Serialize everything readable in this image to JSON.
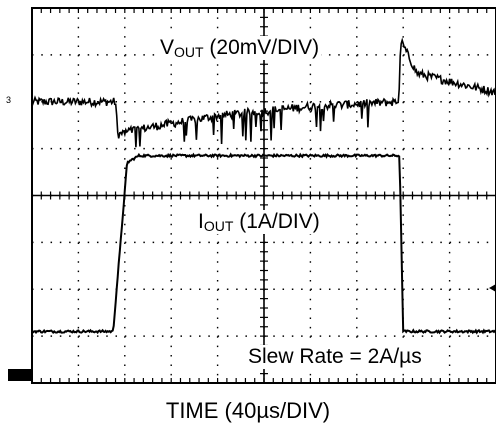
{
  "chart_data": {
    "type": "line",
    "grid": "dotted 10x8",
    "x_axis": {
      "label": "TIME (40µs/DIV)",
      "divisions": 10,
      "units_per_div_us": 40
    },
    "y_axis": {
      "divisions": 8
    },
    "series": [
      {
        "name": "VOUT (20mV/DIV)",
        "label_main": "V",
        "label_sub": "OUT",
        "label_rest": " (20mV/DIV)",
        "trace": "load-transient voltage: flat, dip at load step, slow recovery, overshoot at load release",
        "points_div": [
          [
            0,
            6.0
          ],
          [
            1.8,
            6.0
          ],
          [
            1.85,
            5.3
          ],
          [
            2.2,
            5.4
          ],
          [
            4,
            5.7
          ],
          [
            6,
            5.9
          ],
          [
            7.9,
            6.0
          ],
          [
            7.95,
            7.3
          ],
          [
            8.3,
            6.6
          ],
          [
            10,
            6.2
          ]
        ]
      },
      {
        "name": "IOUT (1A/DIV)",
        "label_main": "I",
        "label_sub": "OUT",
        "label_rest": " (1A/DIV)",
        "trace": "load current square pulse",
        "points_div": [
          [
            0,
            1.1
          ],
          [
            1.75,
            1.1
          ],
          [
            2.05,
            4.7
          ],
          [
            2.3,
            4.85
          ],
          [
            7.92,
            4.85
          ],
          [
            8.0,
            1.1
          ],
          [
            10,
            1.1
          ]
        ]
      }
    ],
    "annotations": [
      "Slew Rate = 2A/µs"
    ]
  },
  "labels": {
    "vout_main": "V",
    "vout_sub": "OUT",
    "vout_rest": " (20mV/DIV)",
    "iout_main": "I",
    "iout_sub": "OUT",
    "iout_rest": " (1A/DIV)",
    "slew": "Slew Rate = 2A/µs",
    "time": "TIME (40µs/DIV)"
  },
  "colors": {
    "trace": "#000000",
    "grid": "#000000",
    "background": "#ffffff"
  }
}
